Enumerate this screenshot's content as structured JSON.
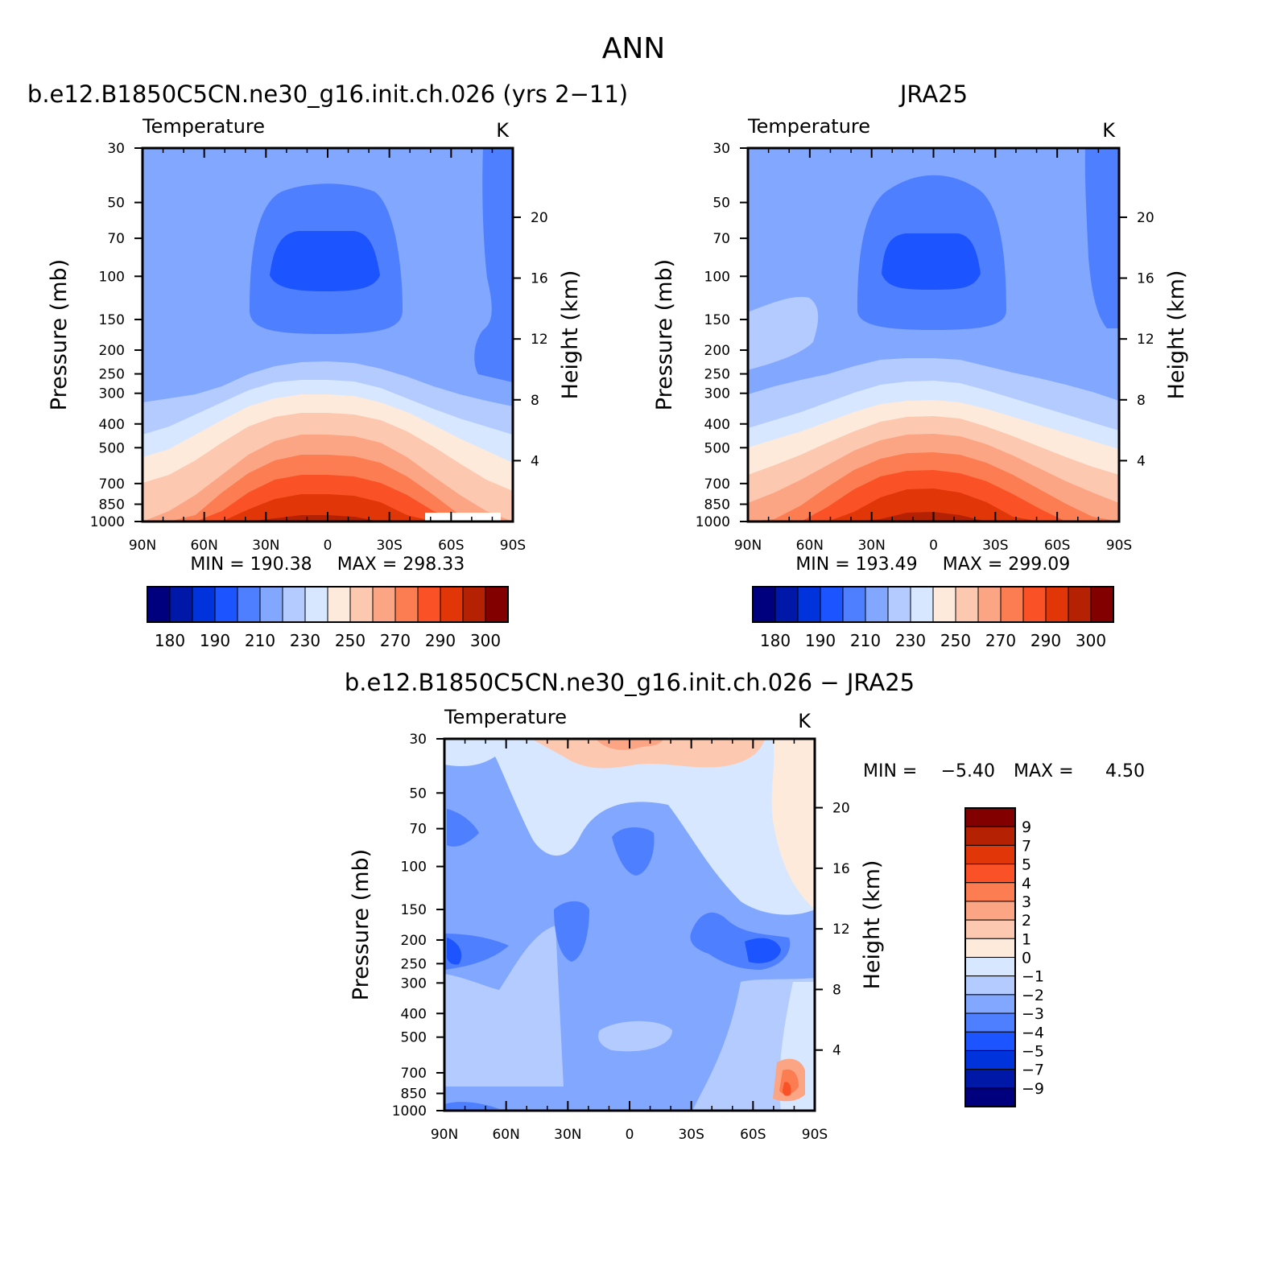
{
  "page": {
    "title": "ANN"
  },
  "colors": {
    "temperature_levels": [
      "#00007f",
      "#0018a8",
      "#0033dc",
      "#1c55ff",
      "#4e7fff",
      "#82a7ff",
      "#b4cbff",
      "#d6e7ff",
      "#feeadb",
      "#fdc8b0",
      "#fca584",
      "#fb7d51",
      "#fa5226",
      "#e13608",
      "#b52203",
      "#820000"
    ],
    "difference_levels": [
      "#00007f",
      "#0018a8",
      "#0033dc",
      "#1c55ff",
      "#4e7fff",
      "#82a7ff",
      "#b4cbff",
      "#d6e7ff",
      "#feeadb",
      "#fdc8b0",
      "#fca584",
      "#fb7d51",
      "#fa5226",
      "#e13608",
      "#b52203",
      "#820000"
    ]
  },
  "chart_data": [
    {
      "id": "model",
      "type": "contour",
      "panel_title": "b.e12.B1850C5CN.ne30_g16.init.ch.026 (yrs 2−11)",
      "variable_label": "Temperature",
      "units": "K",
      "ylabel": "Pressure (mb)",
      "y2label": "Height (km)",
      "min_label": "MIN = 190.38",
      "max_label": "MAX = 298.33",
      "x_ticks": [
        "90N",
        "60N",
        "30N",
        "0",
        "30S",
        "60S",
        "90S"
      ],
      "y_ticks": [
        "30",
        "50",
        "70",
        "100",
        "150",
        "200",
        "250",
        "300",
        "400",
        "500",
        "700",
        "850",
        "1000"
      ],
      "y2_ticks": [
        "20",
        "16",
        "12",
        "8",
        "4"
      ],
      "colorbar_labels": [
        "180",
        "190",
        "210",
        "230",
        "250",
        "270",
        "290",
        "300"
      ],
      "min": 190.38,
      "max": 298.33,
      "lat_range": [
        90,
        -90
      ],
      "pressure_range": [
        30,
        1000
      ]
    },
    {
      "id": "obs",
      "type": "contour",
      "panel_title": "JRA25",
      "variable_label": "Temperature",
      "units": "K",
      "ylabel": "Pressure (mb)",
      "y2label": "Height (km)",
      "min_label": "MIN = 193.49",
      "max_label": "MAX = 299.09",
      "x_ticks": [
        "90N",
        "60N",
        "30N",
        "0",
        "30S",
        "60S",
        "90S"
      ],
      "y_ticks": [
        "30",
        "50",
        "70",
        "100",
        "150",
        "200",
        "250",
        "300",
        "400",
        "500",
        "700",
        "850",
        "1000"
      ],
      "y2_ticks": [
        "20",
        "16",
        "12",
        "8",
        "4"
      ],
      "colorbar_labels": [
        "180",
        "190",
        "210",
        "230",
        "250",
        "270",
        "290",
        "300"
      ],
      "min": 193.49,
      "max": 299.09,
      "lat_range": [
        90,
        -90
      ],
      "pressure_range": [
        30,
        1000
      ]
    },
    {
      "id": "diff",
      "type": "contour",
      "panel_title": "b.e12.B1850C5CN.ne30_g16.init.ch.026 − JRA25",
      "variable_label": "Temperature",
      "units": "K",
      "ylabel": "Pressure (mb)",
      "y2label": "Height (km)",
      "min_label": "MIN =",
      "min_value": "−5.40",
      "max_label": "MAX =",
      "max_value": "4.50",
      "x_ticks": [
        "90N",
        "60N",
        "30N",
        "0",
        "30S",
        "60S",
        "90S"
      ],
      "y_ticks": [
        "30",
        "50",
        "70",
        "100",
        "150",
        "200",
        "250",
        "300",
        "400",
        "500",
        "700",
        "850",
        "1000"
      ],
      "y2_ticks": [
        "20",
        "16",
        "12",
        "8",
        "4"
      ],
      "colorbar_labels": [
        "9",
        "7",
        "5",
        "4",
        "3",
        "2",
        "1",
        "0",
        "−1",
        "−2",
        "−3",
        "−4",
        "−5",
        "−7",
        "−9"
      ],
      "min": -5.4,
      "max": 4.5,
      "lat_range": [
        90,
        -90
      ],
      "pressure_range": [
        30,
        1000
      ]
    }
  ]
}
